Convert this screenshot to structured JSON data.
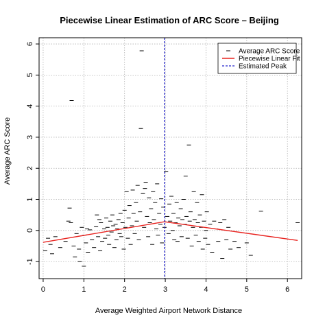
{
  "chart_data": {
    "type": "scatter",
    "title": "Piecewise Linear Estimation of ARC Score – Beijing",
    "xlabel": "Average Weighted Airport Network Distance",
    "ylabel": "Average ARC Score",
    "xlim": [
      -0.1,
      6.35
    ],
    "ylim": [
      -1.55,
      6.2
    ],
    "x_ticks": [
      0,
      1,
      2,
      3,
      4,
      5,
      6
    ],
    "y_ticks": [
      -1,
      0,
      1,
      2,
      3,
      4,
      5,
      6
    ],
    "grid": true,
    "legend": {
      "position": "top-right",
      "entries": [
        {
          "label": "Average ARC Score",
          "marker": "dash",
          "color": "#000000"
        },
        {
          "label": "Piecewise Linear Fit",
          "marker": "line",
          "color": "#e8231f"
        },
        {
          "label": "Estimated Peak",
          "marker": "dashed-line",
          "color": "#2222cc"
        }
      ]
    },
    "series": [
      {
        "name": "Average ARC Score",
        "type": "scatter",
        "marker": "dash",
        "color": "#000000",
        "points": [
          [
            0.05,
            -0.65
          ],
          [
            0.12,
            -0.25
          ],
          [
            0.18,
            -0.45
          ],
          [
            0.22,
            -0.75
          ],
          [
            0.3,
            -0.2
          ],
          [
            0.42,
            -0.55
          ],
          [
            0.55,
            -0.35
          ],
          [
            0.62,
            0.3
          ],
          [
            0.65,
            0.72
          ],
          [
            0.68,
            0.25
          ],
          [
            0.7,
            4.18
          ],
          [
            0.75,
            -0.5
          ],
          [
            0.78,
            -0.85
          ],
          [
            0.82,
            -0.1
          ],
          [
            0.88,
            -0.6
          ],
          [
            0.9,
            -1.0
          ],
          [
            0.95,
            0.1
          ],
          [
            1.0,
            -1.15
          ],
          [
            1.02,
            -0.15
          ],
          [
            1.05,
            -0.4
          ],
          [
            1.08,
            0.05
          ],
          [
            1.1,
            -0.7
          ],
          [
            1.15,
            0.02
          ],
          [
            1.2,
            -0.3
          ],
          [
            1.25,
            -0.55
          ],
          [
            1.3,
            0.12
          ],
          [
            1.32,
            0.5
          ],
          [
            1.35,
            -0.2
          ],
          [
            1.38,
            0.35
          ],
          [
            1.4,
            -0.65
          ],
          [
            1.42,
            0.25
          ],
          [
            1.45,
            -0.35
          ],
          [
            1.5,
            0.05
          ],
          [
            1.52,
            -0.25
          ],
          [
            1.55,
            0.4
          ],
          [
            1.58,
            0.1
          ],
          [
            1.6,
            -0.15
          ],
          [
            1.62,
            -0.45
          ],
          [
            1.65,
            0.3
          ],
          [
            1.68,
            -0.05
          ],
          [
            1.7,
            0.5
          ],
          [
            1.72,
            0.15
          ],
          [
            1.75,
            -0.55
          ],
          [
            1.78,
            0.2
          ],
          [
            1.8,
            -0.3
          ],
          [
            1.82,
            0.05
          ],
          [
            1.85,
            0.35
          ],
          [
            1.88,
            -0.1
          ],
          [
            1.9,
            0.55
          ],
          [
            1.92,
            -0.2
          ],
          [
            1.95,
            0.25
          ],
          [
            1.98,
            -0.6
          ],
          [
            2.0,
            0.65
          ],
          [
            2.02,
            0.1
          ],
          [
            2.05,
            1.25
          ],
          [
            2.08,
            -0.25
          ],
          [
            2.1,
            0.4
          ],
          [
            2.12,
            0.8
          ],
          [
            2.15,
            -0.45
          ],
          [
            2.18,
            0.15
          ],
          [
            2.2,
            1.3
          ],
          [
            2.22,
            0.55
          ],
          [
            2.25,
            -0.1
          ],
          [
            2.28,
            0.9
          ],
          [
            2.3,
            0.3
          ],
          [
            2.32,
            1.45
          ],
          [
            2.35,
            -0.3
          ],
          [
            2.38,
            0.6
          ],
          [
            2.4,
            3.28
          ],
          [
            2.42,
            5.78
          ],
          [
            2.45,
            1.2
          ],
          [
            2.48,
            0.1
          ],
          [
            2.5,
            1.35
          ],
          [
            2.52,
            1.55
          ],
          [
            2.55,
            0.45
          ],
          [
            2.58,
            -0.2
          ],
          [
            2.6,
            1.05
          ],
          [
            2.62,
            0.25
          ],
          [
            2.65,
            0.7
          ],
          [
            2.68,
            -0.45
          ],
          [
            2.7,
            1.25
          ],
          [
            2.72,
            0.35
          ],
          [
            2.75,
            0.9
          ],
          [
            2.78,
            0.05
          ],
          [
            2.8,
            1.5
          ],
          [
            2.82,
            -0.15
          ],
          [
            2.85,
            0.55
          ],
          [
            2.88,
            0.2
          ],
          [
            2.9,
            1.02
          ],
          [
            2.92,
            -0.4
          ],
          [
            2.95,
            0.75
          ],
          [
            2.98,
            0.1
          ],
          [
            3.02,
            1.9
          ],
          [
            3.05,
            0.45
          ],
          [
            3.08,
            -0.1
          ],
          [
            3.1,
            0.85
          ],
          [
            3.12,
            0.3
          ],
          [
            3.15,
            1.1
          ],
          [
            3.18,
            0.0
          ],
          [
            3.2,
            0.55
          ],
          [
            3.22,
            -0.3
          ],
          [
            3.25,
            0.25
          ],
          [
            3.28,
            0.9
          ],
          [
            3.3,
            -0.35
          ],
          [
            3.32,
            0.4
          ],
          [
            3.35,
            0.15
          ],
          [
            3.38,
            0.7
          ],
          [
            3.4,
            -0.2
          ],
          [
            3.42,
            0.35
          ],
          [
            3.45,
            1.0
          ],
          [
            3.48,
            0.2
          ],
          [
            3.5,
            1.75
          ],
          [
            3.52,
            0.45
          ],
          [
            3.55,
            -0.25
          ],
          [
            3.58,
            2.75
          ],
          [
            3.6,
            0.3
          ],
          [
            3.62,
            0.6
          ],
          [
            3.65,
            -0.5
          ],
          [
            3.68,
            0.1
          ],
          [
            3.7,
            1.25
          ],
          [
            3.72,
            0.35
          ],
          [
            3.75,
            -0.15
          ],
          [
            3.78,
            0.9
          ],
          [
            3.8,
            0.25
          ],
          [
            3.82,
            -0.35
          ],
          [
            3.85,
            0.5
          ],
          [
            3.88,
            0.1
          ],
          [
            3.9,
            1.15
          ],
          [
            3.92,
            -0.6
          ],
          [
            3.95,
            0.3
          ],
          [
            3.98,
            -0.25
          ],
          [
            4.0,
            0.0
          ],
          [
            4.02,
            0.6
          ],
          [
            4.05,
            -0.45
          ],
          [
            4.1,
            0.2
          ],
          [
            4.15,
            -0.7
          ],
          [
            4.2,
            0.3
          ],
          [
            4.25,
            0.05
          ],
          [
            4.3,
            -0.35
          ],
          [
            4.35,
            0.25
          ],
          [
            4.4,
            -0.9
          ],
          [
            4.45,
            0.35
          ],
          [
            4.5,
            -0.3
          ],
          [
            4.55,
            0.1
          ],
          [
            4.6,
            -0.6
          ],
          [
            4.7,
            -0.35
          ],
          [
            4.8,
            -0.55
          ],
          [
            5.0,
            -0.4
          ],
          [
            5.1,
            -0.8
          ],
          [
            5.35,
            0.62
          ],
          [
            6.25,
            0.25
          ]
        ]
      },
      {
        "name": "Piecewise Linear Fit",
        "type": "line",
        "color": "#e8231f",
        "points": [
          [
            0.0,
            -0.38
          ],
          [
            2.98,
            0.28
          ],
          [
            6.25,
            -0.32
          ]
        ]
      },
      {
        "name": "Estimated Peak",
        "type": "vline",
        "color": "#2222cc",
        "x": 2.98
      }
    ]
  }
}
